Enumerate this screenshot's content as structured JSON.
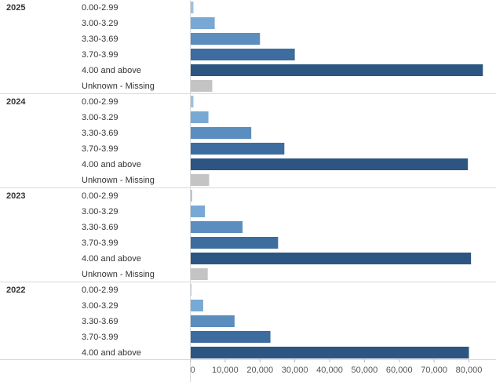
{
  "chart_data": {
    "type": "bar",
    "orientation": "horizontal",
    "xlim": [
      0,
      82000
    ],
    "x_ticks": [
      "0",
      "10,000",
      "20,000",
      "30,000",
      "40,000",
      "50,000",
      "60,000",
      "70,000",
      "80,000"
    ],
    "x_tick_values": [
      0,
      10000,
      20000,
      30000,
      40000,
      50000,
      60000,
      70000,
      80000
    ],
    "grid": false,
    "colors": {
      "0.00-2.99": "#9ec1e0",
      "3.00-3.29": "#77a9d4",
      "3.30-3.69": "#5b8dbf",
      "3.70-3.99": "#3d6c9e",
      "4.00 and above": "#2c5582",
      "Unknown - Missing": "#c4c4c4"
    },
    "groups": [
      {
        "year": "2025",
        "bars": [
          {
            "category": "0.00-2.99",
            "value": 900
          },
          {
            "category": "3.00-3.29",
            "value": 7000
          },
          {
            "category": "3.30-3.69",
            "value": 20000
          },
          {
            "category": "3.70-3.99",
            "value": 30000
          },
          {
            "category": "4.00 and above",
            "value": 84000
          },
          {
            "category": "Unknown - Missing",
            "value": 6300
          }
        ]
      },
      {
        "year": "2024",
        "bars": [
          {
            "category": "0.00-2.99",
            "value": 900
          },
          {
            "category": "3.00-3.29",
            "value": 5200
          },
          {
            "category": "3.30-3.69",
            "value": 17500
          },
          {
            "category": "3.70-3.99",
            "value": 27000
          },
          {
            "category": "4.00 and above",
            "value": 79700
          },
          {
            "category": "Unknown - Missing",
            "value": 5400
          }
        ]
      },
      {
        "year": "2023",
        "bars": [
          {
            "category": "0.00-2.99",
            "value": 500
          },
          {
            "category": "3.00-3.29",
            "value": 4200
          },
          {
            "category": "3.30-3.69",
            "value": 15000
          },
          {
            "category": "3.70-3.99",
            "value": 25200
          },
          {
            "category": "4.00 and above",
            "value": 80600
          },
          {
            "category": "Unknown - Missing",
            "value": 5000
          }
        ]
      },
      {
        "year": "2022",
        "bars": [
          {
            "category": "0.00-2.99",
            "value": 300
          },
          {
            "category": "3.00-3.29",
            "value": 3700
          },
          {
            "category": "3.30-3.69",
            "value": 12700
          },
          {
            "category": "3.70-3.99",
            "value": 23000
          },
          {
            "category": "4.00 and above",
            "value": 80000
          }
        ]
      }
    ]
  }
}
